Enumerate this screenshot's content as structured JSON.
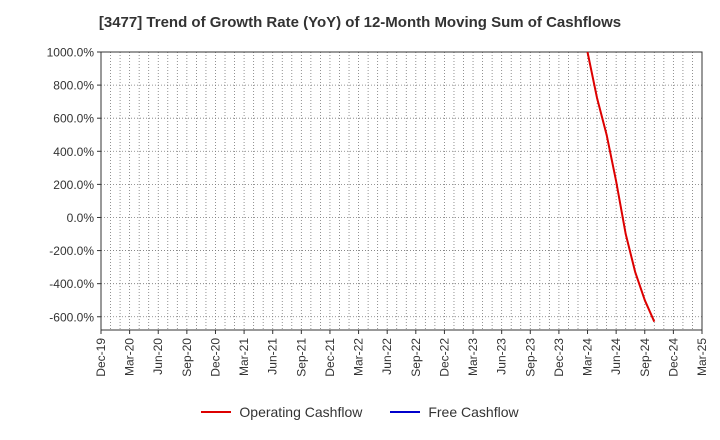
{
  "chart_data": {
    "type": "line",
    "title": "[3477]  Trend of Growth Rate (YoY) of 12-Month Moving Sum of Cashflows",
    "xlabel": "",
    "ylabel": "",
    "ylim": [
      -680,
      1000
    ],
    "yticks": [
      1000,
      800,
      600,
      400,
      200,
      0,
      -200,
      -400,
      -600
    ],
    "ytick_labels": [
      "1000.0%",
      "800.0%",
      "600.0%",
      "400.0%",
      "200.0%",
      "0.0%",
      "-200.0%",
      "-400.0%",
      "-600.0%"
    ],
    "xtick_labels": [
      "Dec-19",
      "Mar-20",
      "Jun-20",
      "Sep-20",
      "Dec-20",
      "Mar-21",
      "Jun-21",
      "Sep-21",
      "Dec-21",
      "Mar-22",
      "Jun-22",
      "Sep-22",
      "Dec-22",
      "Mar-23",
      "Jun-23",
      "Sep-23",
      "Dec-23",
      "Mar-24",
      "Jun-24",
      "Sep-24",
      "Dec-24",
      "Mar-25"
    ],
    "grid": true,
    "legend_position": "bottom",
    "series": [
      {
        "name": "Operating Cashflow",
        "color": "#dd0000",
        "points": [
          {
            "x": "Mar-24",
            "y": 1000
          },
          {
            "x": "Apr-24",
            "y": 720
          },
          {
            "x": "May-24",
            "y": 500
          },
          {
            "x": "Jun-24",
            "y": 220
          },
          {
            "x": "Jul-24",
            "y": -100
          },
          {
            "x": "Aug-24",
            "y": -330
          },
          {
            "x": "Sep-24",
            "y": -500
          },
          {
            "x": "Oct-24",
            "y": -630
          }
        ]
      },
      {
        "name": "Free Cashflow",
        "color": "#0000cc",
        "points": []
      }
    ]
  }
}
